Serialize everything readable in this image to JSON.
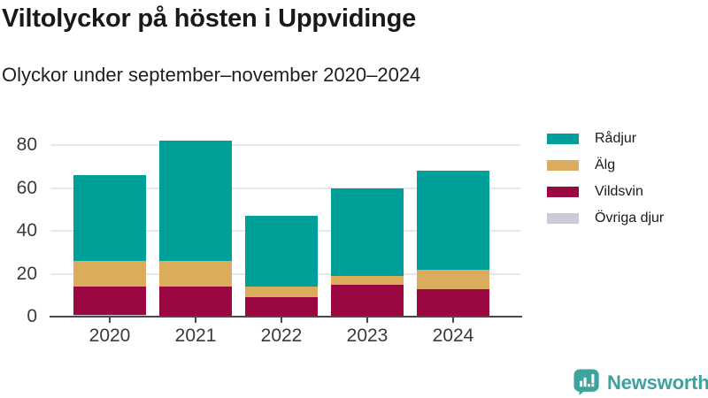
{
  "chart_data": {
    "type": "bar",
    "stacked": true,
    "title": "Viltolyckor på hösten i Uppvidinge",
    "subtitle": "Olyckor under september–november 2020–2024",
    "categories": [
      "2020",
      "2021",
      "2022",
      "2023",
      "2024"
    ],
    "series": [
      {
        "name": "Rådjur",
        "color": "#00a09a",
        "values": [
          40,
          56,
          33,
          41,
          46
        ]
      },
      {
        "name": "Älg",
        "color": "#dbac5b",
        "values": [
          12,
          12,
          5,
          4,
          9
        ]
      },
      {
        "name": "Vildsvin",
        "color": "#9a0741",
        "values": [
          13,
          14,
          9,
          15,
          13
        ]
      },
      {
        "name": "Övriga djur",
        "color": "#cccad6",
        "values": [
          1,
          0,
          0,
          0,
          0
        ]
      }
    ],
    "stack_order_bottom_to_top": [
      "Övriga djur",
      "Vildsvin",
      "Älg",
      "Rådjur"
    ],
    "totals": [
      66,
      82,
      47,
      60,
      68
    ],
    "y_ticks": [
      0,
      20,
      40,
      60,
      80
    ],
    "ylim": [
      0,
      90
    ],
    "grid": true,
    "legend_position": "right",
    "axis_color": "#4a4a4a",
    "gridline_color": "#e7e7e7"
  },
  "footer": {
    "brand_name": "Newsworthy",
    "brand_color": "#3ea29d",
    "logo_icon": "bar-chart-speech-bubble"
  }
}
